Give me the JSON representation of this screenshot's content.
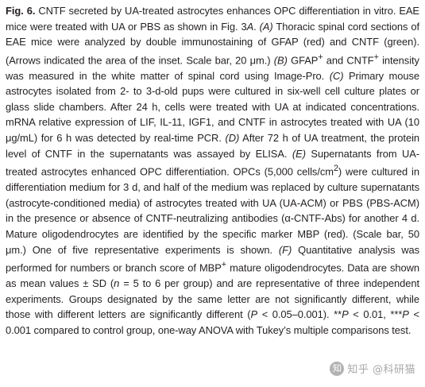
{
  "caption": {
    "fig_label": "Fig. 6.",
    "title": "CNTF secreted by UA-treated astrocytes enhances OPC differentiation in vitro. EAE mice were treated with UA or PBS as shown in Fig. 3",
    "title_ref": "A",
    "title_end": ".",
    "panel_a_label": "(A)",
    "panel_a_text": "Thoracic spinal cord sections of EAE mice were analyzed by double immunostaining of GFAP (red) and CNTF (green). (Arrows indicated the area of the inset. Scale bar, 20 μm.)",
    "panel_b_label": "(B)",
    "panel_b_text_1": "GFAP",
    "panel_b_sup_1": "+",
    "panel_b_text_2": "and CNTF",
    "panel_b_sup_2": "+",
    "panel_b_text_3": "intensity was measured in the white matter of spinal cord using Image-Pro.",
    "panel_c_label": "(C)",
    "panel_c_text": "Primary mouse astrocytes isolated from 2- to 3-d-old pups were cultured in six-well cell culture plates or glass slide chambers. After 24 h, cells were treated with UA at indicated concentrations. mRNA relative expression of LIF, IL-11, IGF1, and CNTF in astrocytes treated with UA (10 μg/mL) for 6 h was detected by real-time PCR.",
    "panel_d_label": "(D)",
    "panel_d_text": "After 72 h of UA treatment, the protein level of CNTF in the supernatants was assayed by ELISA.",
    "panel_e_label": "(E)",
    "panel_e_text_1": "Supernatants from UA-treated astrocytes enhanced OPC differentiation. OPCs (5,000 cells/cm",
    "panel_e_sup": "2",
    "panel_e_text_2": ") were cultured in differentiation medium for 3 d, and half of the medium was replaced by culture supernatants (astrocyte-conditioned media) of astrocytes treated with UA (UA-ACM) or PBS (PBS-ACM) in the presence or absence of CNTF-neutralizing antibodies (α-CNTF-Abs) for another 4 d. Mature oligodendrocytes are identified by the specific marker MBP (red). (Scale bar, 50 μm.) One of five representative experiments is shown.",
    "panel_f_label": "(F)",
    "panel_f_text_1": "Quantitative analysis was performed for numbers or branch score of MBP",
    "panel_f_sup": "+",
    "panel_f_text_2": "mature oligodendrocytes. Data are shown as mean values ± SD (",
    "panel_f_n": "n",
    "panel_f_text_3": "= 5 to 6 per group) and are representative of three independent experiments. Groups designated by the same letter are not significantly different, while those with different letters are significantly different (",
    "panel_f_p1": "P",
    "panel_f_text_4": "< 0.05–0.001). **",
    "panel_f_p2": "P",
    "panel_f_text_5": "< 0.01, ***",
    "panel_f_p3": "P",
    "panel_f_text_6": "< 0.001 compared to control group, one-way ANOVA with Tukey’s multiple comparisons test."
  },
  "watermark": {
    "text": "知乎 @科研猫"
  }
}
